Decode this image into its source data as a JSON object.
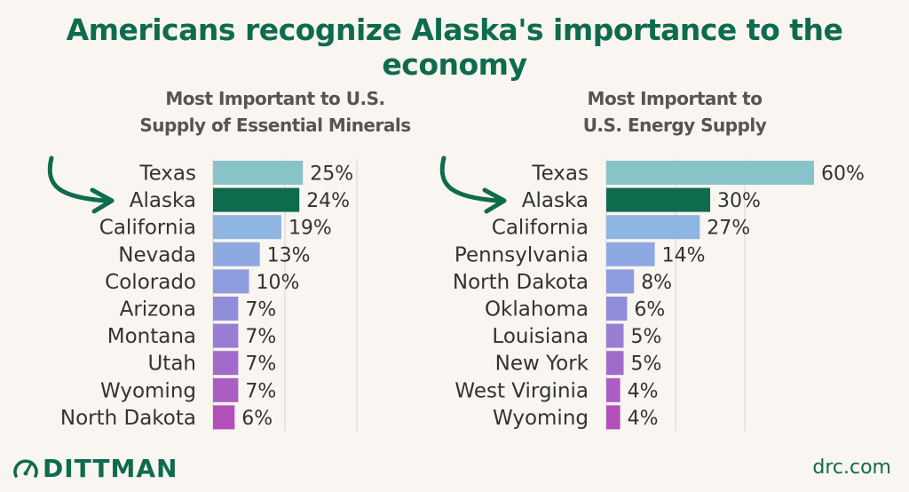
{
  "headline": "Americans recognize Alaska's importance to the economy",
  "brand": {
    "logo_text": "DITTMAN",
    "site": "drc.com"
  },
  "colors": {
    "highlight": "#0e6b4e",
    "bar_gradient": [
      "#87c3c9",
      "#8fb3e3",
      "#8c96dd",
      "#9f6fcf",
      "#b24fb8"
    ],
    "gridline": "#d9d4cf",
    "arrow": "#0e6b4e"
  },
  "chart_data": [
    {
      "type": "bar",
      "orientation": "horizontal",
      "title_lines": [
        "Most Important to U.S.",
        "Supply of Essential Minerals"
      ],
      "categories": [
        "Texas",
        "Alaska",
        "California",
        "Nevada",
        "Colorado",
        "Arizona",
        "Montana",
        "Utah",
        "Wyoming",
        "North Dakota"
      ],
      "values": [
        25,
        24,
        19,
        13,
        10,
        7,
        7,
        7,
        7,
        6
      ],
      "value_suffix": "%",
      "highlight": "Alaska",
      "xlim": [
        0,
        60
      ],
      "grid": true
    },
    {
      "type": "bar",
      "orientation": "horizontal",
      "title_lines": [
        "Most Important to",
        "U.S. Energy Supply"
      ],
      "categories": [
        "Texas",
        "Alaska",
        "California",
        "Pennsylvania",
        "North Dakota",
        "Oklahoma",
        "Louisiana",
        "New York",
        "West Virginia",
        "Wyoming"
      ],
      "values": [
        60,
        30,
        27,
        14,
        8,
        6,
        5,
        5,
        4,
        4
      ],
      "value_suffix": "%",
      "highlight": "Alaska",
      "xlim": [
        0,
        60
      ],
      "grid": true
    }
  ]
}
